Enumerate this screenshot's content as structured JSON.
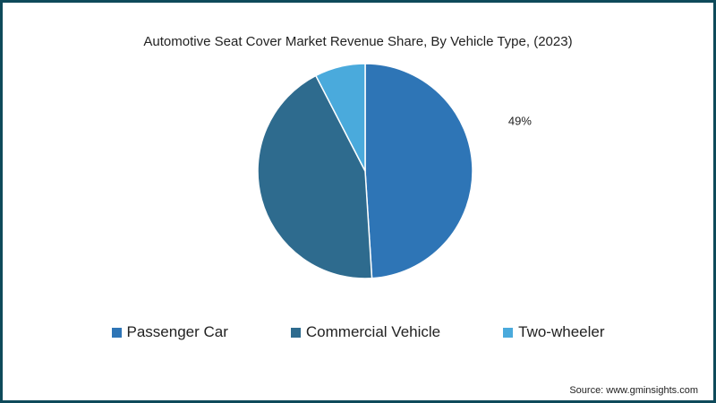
{
  "chart_data": {
    "type": "pie",
    "title": "Automotive Seat Cover Market Revenue Share, By Vehicle Type, (2023)",
    "categories": [
      "Passenger Car",
      "Commercial Vehicle",
      "Two-wheeler"
    ],
    "values": [
      49,
      43.4,
      7.6
    ],
    "data_labels": [
      "49%",
      "",
      ""
    ],
    "colors": [
      "#2e75b6",
      "#2e6b8e",
      "#4aaadc"
    ],
    "legend_position": "bottom"
  },
  "source": "Source: www.gminsights.com"
}
